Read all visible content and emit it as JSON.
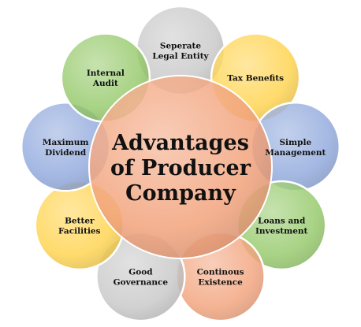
{
  "center": {
    "lines": [
      "Advantages",
      "of Producer",
      "Company"
    ],
    "color": "#f2a37c"
  },
  "nodes": [
    {
      "id": "separate-legal-entity",
      "lines": [
        "Seperate",
        "Legal Entity"
      ],
      "color": "#c8c8c8"
    },
    {
      "id": "tax-benefits",
      "lines": [
        "Tax Benefits"
      ],
      "color": "#ffd34d"
    },
    {
      "id": "simple-management",
      "lines": [
        "Simple",
        "Management"
      ],
      "color": "#8fa8dc"
    },
    {
      "id": "loans-and-investment",
      "lines": [
        "Loans and",
        "Investment"
      ],
      "color": "#95c96a"
    },
    {
      "id": "continous-existence",
      "lines": [
        "Continous",
        "Existence"
      ],
      "color": "#f2a37c"
    },
    {
      "id": "good-governance",
      "lines": [
        "Good",
        "Governance"
      ],
      "color": "#c8c8c8"
    },
    {
      "id": "better-facilities",
      "lines": [
        "Better",
        "Facilities"
      ],
      "color": "#ffd34d"
    },
    {
      "id": "maximum-dividend",
      "lines": [
        "Maximum",
        "Dividend"
      ],
      "color": "#8fa8dc"
    },
    {
      "id": "internal-audit",
      "lines": [
        "Internal",
        "Audit"
      ],
      "color": "#95c96a"
    }
  ]
}
